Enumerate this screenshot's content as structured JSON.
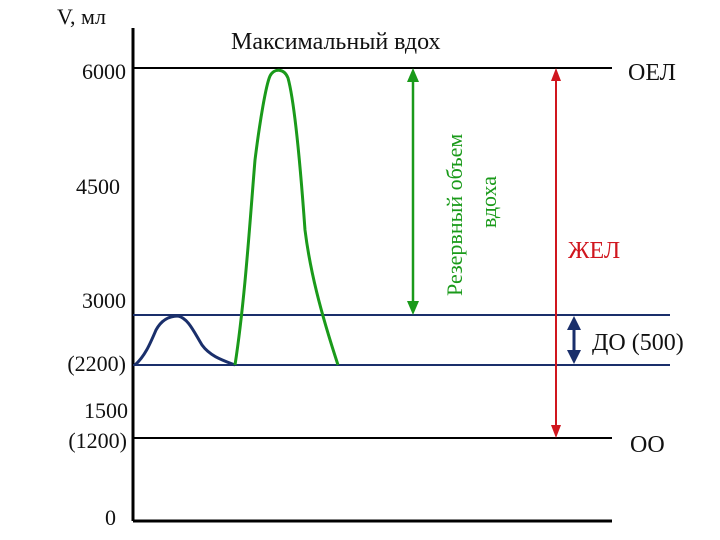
{
  "axis": {
    "label": "V, мл",
    "ticks": [
      {
        "label": "6000",
        "value": 6000
      },
      {
        "label": "4500",
        "value": 4500
      },
      {
        "label": "3000",
        "value": 3000
      },
      {
        "label": "(2200)",
        "value": 2200
      },
      {
        "label": "1500",
        "value": 1500
      },
      {
        "label": "(1200)",
        "value": 1200
      },
      {
        "label": "0",
        "value": 0
      }
    ]
  },
  "title": "Максимальный вдох",
  "levels": {
    "oel": "ОЕЛ",
    "oo": "ОО"
  },
  "brackets": {
    "rov_line1": "Резервный объем",
    "rov_line2": "вдоха",
    "zhel": "ЖЕЛ",
    "do": "ДО (500)"
  },
  "colors": {
    "axis": "#000000",
    "tidal": "#1a2f6b",
    "green": "#1a9a1a",
    "red": "#d0161e",
    "text": "#111111"
  }
}
